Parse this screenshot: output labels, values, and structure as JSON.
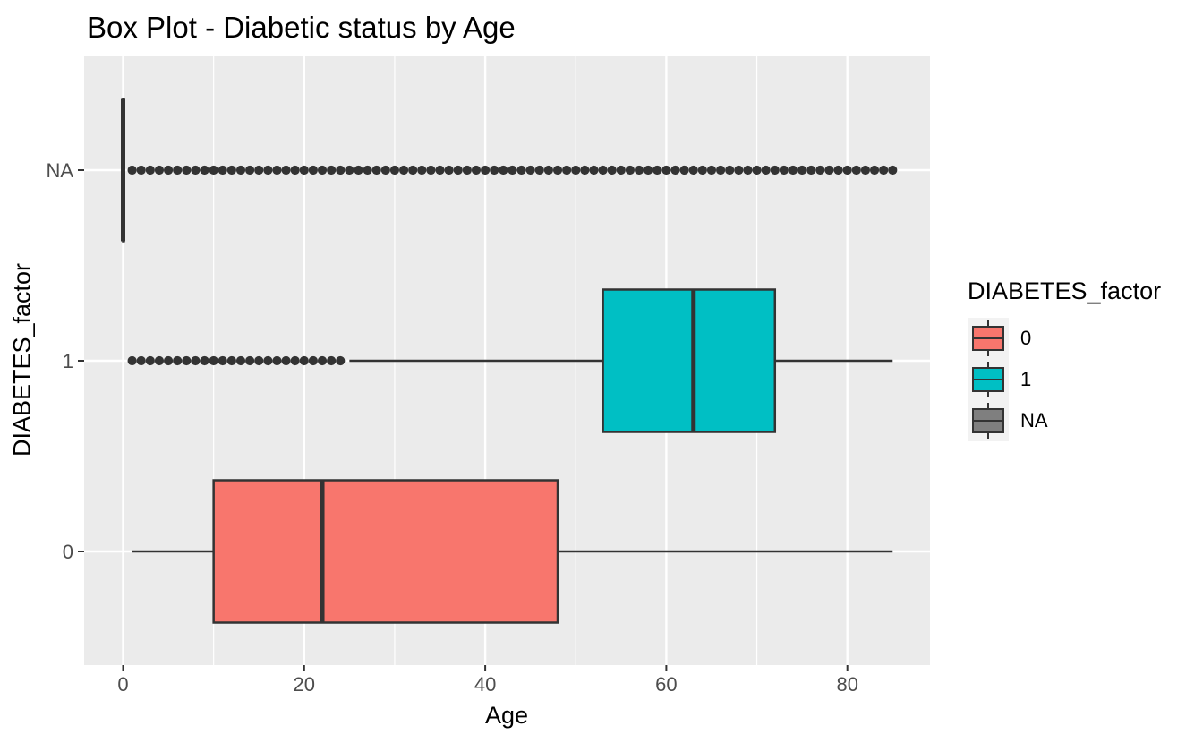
{
  "colors": {
    "panel_bg": "#EBEBEB",
    "grid": "#FFFFFF",
    "stroke_dark": "#333333",
    "tick_text": "#4D4D4D",
    "text": "#000000",
    "legend_key_bg": "#F2F2F2",
    "fill_0": "#F8766D",
    "fill_1": "#00BFC4",
    "fill_na": "#7F7F7F"
  },
  "chart_data": {
    "type": "boxplot",
    "orientation": "horizontal",
    "title": "Box Plot - Diabetic status by Age",
    "xlabel": "Age",
    "ylabel": "DIABETES_factor",
    "x_major_ticks": [
      0,
      20,
      40,
      60,
      80
    ],
    "x_minor_ticks": [
      10,
      30,
      50,
      70
    ],
    "x_range": [
      -4.3,
      89.2
    ],
    "grid": "on",
    "y_categories_top_to_bottom": [
      "NA",
      "1",
      "0"
    ],
    "rows": [
      {
        "label": "NA",
        "fill": "#7F7F7F",
        "whisker_min": 0,
        "q1": 0,
        "median": 0,
        "q3": 0,
        "whisker_max": 0,
        "outliers": {
          "start": 1,
          "end": 85,
          "step": 1
        }
      },
      {
        "label": "1",
        "fill": "#00BFC4",
        "whisker_min": 25,
        "q1": 53,
        "median": 63,
        "q3": 72,
        "whisker_max": 85,
        "outliers": {
          "start": 1,
          "end": 24,
          "step": 1
        }
      },
      {
        "label": "0",
        "fill": "#F8766D",
        "whisker_min": 1,
        "q1": 10,
        "median": 22,
        "q3": 48,
        "whisker_max": 85,
        "outliers": null
      }
    ],
    "legend": {
      "title": "DIABETES_factor",
      "position": "right",
      "items": [
        {
          "label": "0",
          "color": "#F8766D"
        },
        {
          "label": "1",
          "color": "#00BFC4"
        },
        {
          "label": "NA",
          "color": "#7F7F7F"
        }
      ]
    }
  }
}
